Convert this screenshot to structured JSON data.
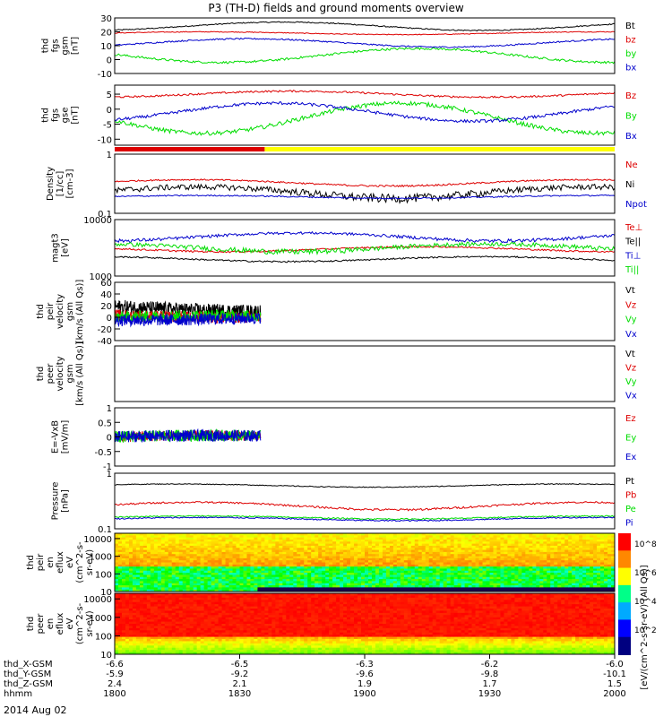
{
  "title": "P3 (TH-D) fields and ground moments overview",
  "date_label": "2014 Aug 02",
  "colors": {
    "black": "#000000",
    "red": "#dd0000",
    "green": "#00dd00",
    "blue": "#0000cc",
    "yellow": "#ffff00"
  },
  "chart_data": [
    {
      "id": "p1",
      "type": "line",
      "ylabel": [
        "thd",
        "fgs",
        "gsm",
        "[nT]"
      ],
      "ylim": [
        -10,
        30
      ],
      "ticks": [
        -10,
        0,
        10,
        20,
        30
      ],
      "series": [
        {
          "name": "Bt",
          "color": "black",
          "base": 24,
          "amp": 3,
          "noise": 0.4
        },
        {
          "name": "bz",
          "color": "red",
          "base": 19,
          "amp": 1,
          "noise": 0.3
        },
        {
          "name": "by",
          "color": "green",
          "base": 3,
          "amp": 5,
          "noise": 0.8
        },
        {
          "name": "bx",
          "color": "blue",
          "base": 12,
          "amp": 3,
          "noise": 0.5
        }
      ]
    },
    {
      "id": "p2",
      "type": "line",
      "ylabel": [
        "thd",
        "fgs",
        "gse",
        "[nT]"
      ],
      "ylim": [
        -12,
        8
      ],
      "ticks": [
        -10,
        -5,
        0,
        5
      ],
      "series": [
        {
          "name": "Bz",
          "color": "red",
          "base": 5,
          "amp": 1,
          "noise": 0.3
        },
        {
          "name": "By",
          "color": "green",
          "base": -3,
          "amp": 5,
          "noise": 0.7
        },
        {
          "name": "Bx",
          "color": "blue",
          "base": -1,
          "amp": 3,
          "noise": 0.5
        }
      ]
    },
    {
      "id": "p3",
      "type": "line",
      "ylabel": [
        "Density",
        "[1/cc]",
        "[cm-3]"
      ],
      "log": true,
      "ylim": [
        0.1,
        1.0
      ],
      "ticks": [
        0.1,
        1.0
      ],
      "series": [
        {
          "name": "Ne",
          "color": "red",
          "base": 0.33,
          "amp": 0.04,
          "noise": 0.01
        },
        {
          "name": "Ni",
          "color": "black",
          "base": 0.23,
          "amp": 0.05,
          "noise": 0.03
        },
        {
          "name": "Npot",
          "color": "blue",
          "base": 0.19,
          "amp": 0.01,
          "noise": 0.005
        }
      ]
    },
    {
      "id": "p4",
      "type": "line",
      "ylabel": [
        "magt3",
        "[eV]"
      ],
      "log": true,
      "ylim": [
        1000,
        10000
      ],
      "ticks": [
        1000,
        10000
      ],
      "series": [
        {
          "name": "Te⊥",
          "color": "red",
          "base": 3000,
          "amp": 300,
          "noise": 100
        },
        {
          "name": "Te||",
          "color": "black",
          "base": 2000,
          "amp": 200,
          "noise": 60
        },
        {
          "name": "Ti⊥",
          "color": "blue",
          "base": 5000,
          "amp": 800,
          "noise": 300
        },
        {
          "name": "Ti||",
          "color": "green",
          "base": 3200,
          "amp": 500,
          "noise": 300
        }
      ]
    },
    {
      "id": "p5",
      "type": "line",
      "ylabel": [
        "thd",
        "peir",
        "velocity",
        "gsm",
        "[km/s (All Qs)]"
      ],
      "ylim": [
        -40,
        60
      ],
      "ticks": [
        -40,
        -20,
        0,
        20,
        40,
        60
      ],
      "xmax": 1835,
      "series": [
        {
          "name": "Vt",
          "color": "black",
          "base": 15,
          "amp": 5,
          "noise": 12
        },
        {
          "name": "Vz",
          "color": "red",
          "base": 3,
          "amp": 3,
          "noise": 10
        },
        {
          "name": "Vy",
          "color": "green",
          "base": 0,
          "amp": 3,
          "noise": 10
        },
        {
          "name": "Vx",
          "color": "blue",
          "base": -2,
          "amp": 3,
          "noise": 10
        }
      ]
    },
    {
      "id": "p6",
      "type": "line",
      "ylabel": [
        "thd",
        "peer",
        "velocity",
        "gsm",
        "[km/s (All Qs)]"
      ],
      "ylim": [
        -40,
        60
      ],
      "ticks": [],
      "series": [
        {
          "name": "Vt",
          "color": "black"
        },
        {
          "name": "Vz",
          "color": "red"
        },
        {
          "name": "Vy",
          "color": "green"
        },
        {
          "name": "Vx",
          "color": "blue"
        }
      ]
    },
    {
      "id": "p7",
      "type": "line",
      "ylabel": [
        "E=-VxB",
        "[mV/m]"
      ],
      "ylim": [
        -1.0,
        1.0
      ],
      "ticks": [
        -1.0,
        -0.5,
        0.0,
        0.5,
        1.0
      ],
      "xmax": 1835,
      "series": [
        {
          "name": "Ez",
          "color": "red",
          "base": 0,
          "amp": 0.05,
          "noise": 0.18
        },
        {
          "name": "Ey",
          "color": "green",
          "base": 0,
          "amp": 0.05,
          "noise": 0.2
        },
        {
          "name": "Ex",
          "color": "blue",
          "base": 0,
          "amp": 0.05,
          "noise": 0.2
        }
      ]
    },
    {
      "id": "p8",
      "type": "line",
      "ylabel": [
        "Pressure",
        "[nPa]"
      ],
      "log": true,
      "ylim": [
        0.1,
        1.0
      ],
      "ticks": [
        0.1,
        1.0
      ],
      "series": [
        {
          "name": "Pt",
          "color": "black",
          "base": 0.6,
          "amp": 0.04,
          "noise": 0.01
        },
        {
          "name": "Pb",
          "color": "red",
          "base": 0.26,
          "amp": 0.04,
          "noise": 0.01
        },
        {
          "name": "Pe",
          "color": "green",
          "base": 0.16,
          "amp": 0.01,
          "noise": 0.004
        },
        {
          "name": "Pi",
          "color": "blue",
          "base": 0.15,
          "amp": 0.01,
          "noise": 0.004
        }
      ]
    },
    {
      "id": "p9",
      "type": "heatmap",
      "ylabel": [
        "thd",
        "peir",
        "en",
        "eflux",
        "eV",
        "(cm^2-s-",
        "sr-eV)"
      ],
      "log": true,
      "ylim": [
        10,
        20000
      ],
      "ticks": [
        10,
        100,
        1000,
        10000
      ]
    },
    {
      "id": "p10",
      "type": "heatmap",
      "ylabel": [
        "thd",
        "peer",
        "en",
        "eflux",
        "eV",
        "(cm^2-s-",
        "sr-eV)"
      ],
      "log": true,
      "ylim": [
        10,
        20000
      ],
      "ticks": [
        10,
        100,
        1000,
        10000
      ]
    }
  ],
  "x_axis": {
    "ticks": [
      1800,
      1830,
      1900,
      1930,
      2000
    ],
    "rows": [
      {
        "label": "thd_X-GSM",
        "values": [
          "-6.6",
          "-6.5",
          "-6.3",
          "-6.2",
          "-6.0"
        ]
      },
      {
        "label": "thd_Y-GSM",
        "values": [
          "-5.9",
          "-9.2",
          "-9.6",
          "-9.8",
          "-10.1"
        ]
      },
      {
        "label": "thd_Z-GSM",
        "values": [
          "2.4",
          "2.1",
          "1.9",
          "1.7",
          "1.5"
        ]
      },
      {
        "label": "hhmm",
        "values": [
          "1800",
          "1830",
          "1900",
          "1930",
          "2000"
        ]
      }
    ]
  },
  "colorbar": {
    "label": "[eV/(cm^2-s-sr-eV) (All Qs)]",
    "ticks": [
      "10^8",
      "10^6",
      "10^4",
      "10^2"
    ]
  }
}
